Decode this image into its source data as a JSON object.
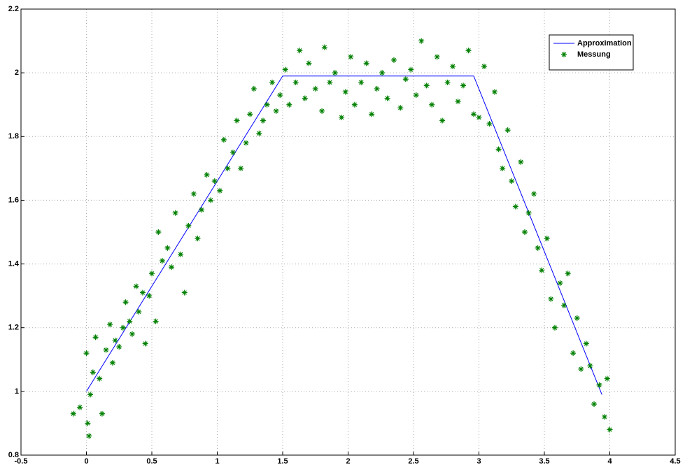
{
  "chart_data": {
    "type": "scatter",
    "grid": true,
    "legend": "northeast",
    "xlim": [
      -0.5,
      4.5
    ],
    "ylim": [
      0.8,
      2.2
    ],
    "xticks": [
      -0.5,
      0,
      0.5,
      1,
      1.5,
      2,
      2.5,
      3,
      3.5,
      4,
      4.5
    ],
    "yticks": [
      0.8,
      1,
      1.2,
      1.4,
      1.6,
      1.8,
      2,
      2.2
    ],
    "series": [
      {
        "name": "Approximation",
        "type": "line",
        "color": "#0000ff",
        "x": [
          0,
          1.5,
          2.96,
          3.94
        ],
        "values": [
          1,
          1.99,
          1.99,
          0.99
        ]
      },
      {
        "name": "Messung",
        "type": "scatter",
        "color": "#008000",
        "x": [
          -0.1,
          -0.05,
          0,
          0.01,
          0.02,
          0.03,
          0.05,
          0.07,
          0.1,
          0.12,
          0.15,
          0.18,
          0.2,
          0.22,
          0.25,
          0.28,
          0.3,
          0.33,
          0.35,
          0.38,
          0.4,
          0.43,
          0.45,
          0.48,
          0.5,
          0.53,
          0.55,
          0.58,
          0.62,
          0.65,
          0.68,
          0.72,
          0.75,
          0.78,
          0.82,
          0.85,
          0.88,
          0.92,
          0.95,
          0.98,
          1.02,
          1.05,
          1.08,
          1.12,
          1.15,
          1.18,
          1.22,
          1.25,
          1.28,
          1.32,
          1.35,
          1.38,
          1.42,
          1.45,
          1.48,
          1.52,
          1.55,
          1.6,
          1.63,
          1.67,
          1.7,
          1.75,
          1.8,
          1.82,
          1.86,
          1.9,
          1.95,
          1.98,
          2.02,
          2.05,
          2.1,
          2.14,
          2.18,
          2.22,
          2.26,
          2.3,
          2.35,
          2.4,
          2.44,
          2.48,
          2.52,
          2.56,
          2.6,
          2.64,
          2.68,
          2.72,
          2.76,
          2.8,
          2.84,
          2.88,
          2.92,
          2.96,
          3.0,
          3.04,
          3.08,
          3.12,
          3.15,
          3.18,
          3.22,
          3.25,
          3.28,
          3.32,
          3.35,
          3.38,
          3.42,
          3.45,
          3.48,
          3.52,
          3.55,
          3.58,
          3.62,
          3.65,
          3.68,
          3.72,
          3.75,
          3.78,
          3.82,
          3.85,
          3.88,
          3.92,
          3.96,
          3.98,
          4.0
        ],
        "values": [
          0.93,
          0.95,
          1.12,
          0.9,
          0.86,
          0.99,
          1.06,
          1.17,
          1.04,
          0.93,
          1.13,
          1.21,
          1.09,
          1.16,
          1.14,
          1.2,
          1.28,
          1.22,
          1.18,
          1.33,
          1.25,
          1.31,
          1.15,
          1.3,
          1.37,
          1.22,
          1.5,
          1.41,
          1.45,
          1.39,
          1.56,
          1.43,
          1.31,
          1.52,
          1.62,
          1.48,
          1.57,
          1.68,
          1.6,
          1.66,
          1.63,
          1.79,
          1.7,
          1.75,
          1.85,
          1.7,
          1.78,
          1.87,
          1.95,
          1.81,
          1.85,
          1.9,
          1.97,
          1.88,
          1.93,
          2.01,
          1.9,
          1.97,
          2.07,
          1.92,
          2.03,
          1.95,
          1.88,
          2.08,
          1.97,
          2.0,
          1.86,
          1.94,
          2.05,
          1.9,
          1.97,
          2.03,
          1.87,
          1.95,
          2.0,
          1.92,
          2.04,
          1.89,
          1.98,
          2.01,
          1.93,
          2.1,
          1.96,
          1.9,
          2.05,
          1.85,
          1.97,
          2.02,
          1.91,
          1.96,
          2.07,
          1.87,
          1.86,
          2.02,
          1.84,
          1.94,
          1.76,
          1.7,
          1.82,
          1.66,
          1.58,
          1.72,
          1.5,
          1.56,
          1.62,
          1.45,
          1.38,
          1.48,
          1.29,
          1.2,
          1.34,
          1.27,
          1.37,
          1.12,
          1.23,
          1.07,
          1.15,
          1.08,
          0.96,
          1.02,
          0.92,
          1.04,
          0.88
        ]
      }
    ]
  }
}
